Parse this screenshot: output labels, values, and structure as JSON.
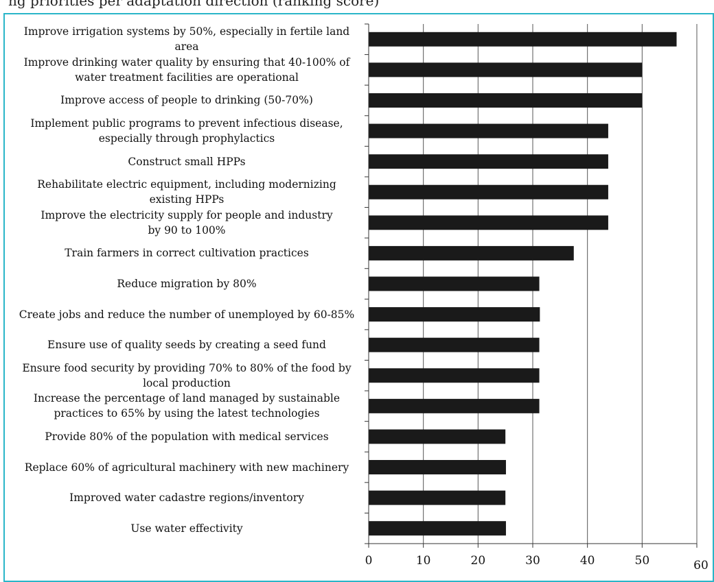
{
  "header": {
    "caption": "ng priorities per adaptation direction (ranking score)"
  },
  "chart_data": {
    "type": "bar",
    "orientation": "horizontal",
    "title": "",
    "xlabel": "",
    "ylabel": "",
    "xlim": [
      0,
      60
    ],
    "ticks": [
      0,
      10,
      20,
      30,
      40,
      50,
      60
    ],
    "grid": "vertical",
    "bar_color": "#1a1a1a",
    "grid_color": "#555555",
    "frame_color": "#29b5c8",
    "categories": [
      [
        "Improve irrigation systems by 50%, especially in fertile land area"
      ],
      [
        "Improve drinking water quality by ensuring that 40-100% of",
        "water treatment facilities are operational"
      ],
      [
        "Improve access of people to drinking (50-70%)"
      ],
      [
        "Implement public programs to prevent infectious disease,",
        "especially through prophylactics"
      ],
      [
        "Construct small HPPs"
      ],
      [
        "Rehabilitate electric equipment, including modernizing",
        "existing HPPs"
      ],
      [
        "Improve the electricity supply for people and industry",
        "by 90 to 100%"
      ],
      [
        "Train farmers in correct cultivation practices"
      ],
      [
        "Reduce migration by 80%"
      ],
      [
        "Create jobs and reduce the number of unemployed by 60-85%"
      ],
      [
        "Ensure use of quality seeds by creating a seed fund"
      ],
      [
        "Ensure food security by providing 70% to 80% of the food by",
        "local production"
      ],
      [
        "Increase the percentage of land managed by sustainable",
        "practices to 65% by using the latest technologies"
      ],
      [
        "Provide 80% of the population with medical services"
      ],
      [
        "Replace 60% of agricultural machinery with new machinery"
      ],
      [
        "Improved water cadastre regions/inventory"
      ],
      [
        "Use water effectivity"
      ]
    ],
    "values": [
      56.3,
      50,
      50,
      43.8,
      43.8,
      43.8,
      43.8,
      37.5,
      31.2,
      31.3,
      31.2,
      31.2,
      31.2,
      25,
      25.1,
      25,
      25.1
    ]
  }
}
